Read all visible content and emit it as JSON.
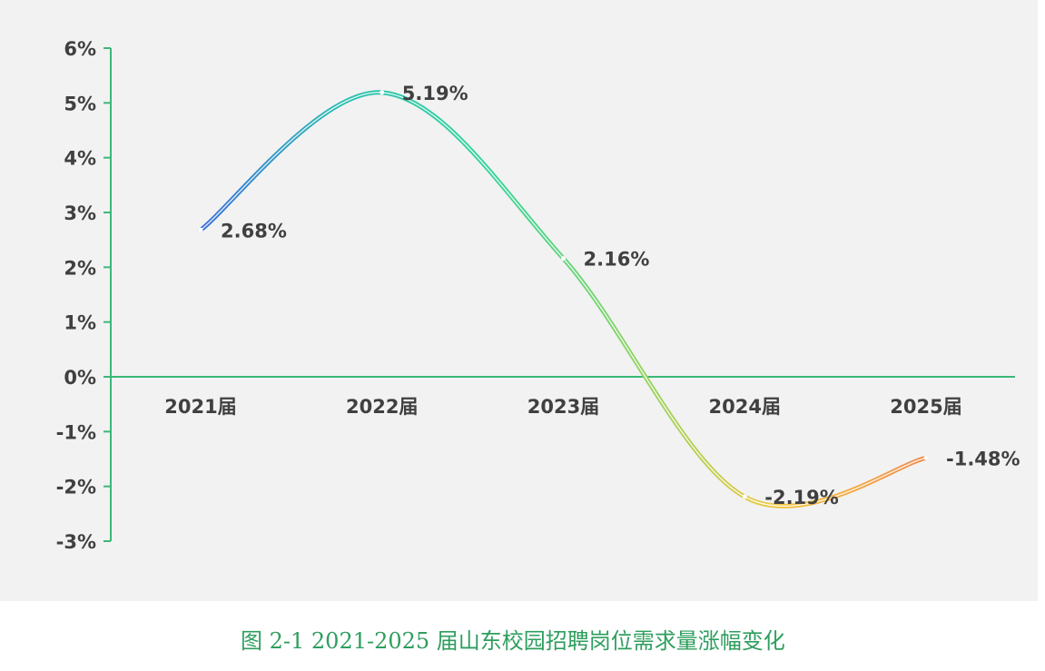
{
  "chart_data": {
    "type": "line",
    "categories": [
      "2021届",
      "2022届",
      "2023届",
      "2024届",
      "2025届"
    ],
    "values": [
      2.68,
      5.19,
      2.16,
      -2.19,
      -1.48
    ],
    "data_labels": [
      "2.68%",
      "5.19%",
      "2.16%",
      "-2.19%",
      "-1.48%"
    ],
    "yticks": [
      "6%",
      "5%",
      "4%",
      "3%",
      "2%",
      "1%",
      "0%",
      "-1%",
      "-2%",
      "-3%"
    ],
    "ylim": [
      -3,
      6
    ],
    "title": "",
    "xlabel": "",
    "ylabel": "",
    "grid": false,
    "line_gradient": [
      "#3a6fd8",
      "#2bbfb0",
      "#35d39a",
      "#8fd464",
      "#f3c740",
      "#f08a4b"
    ],
    "axis_color": "#3cb878"
  },
  "caption": "图 2-1 2021-2025 届山东校园招聘岗位需求量涨幅变化"
}
